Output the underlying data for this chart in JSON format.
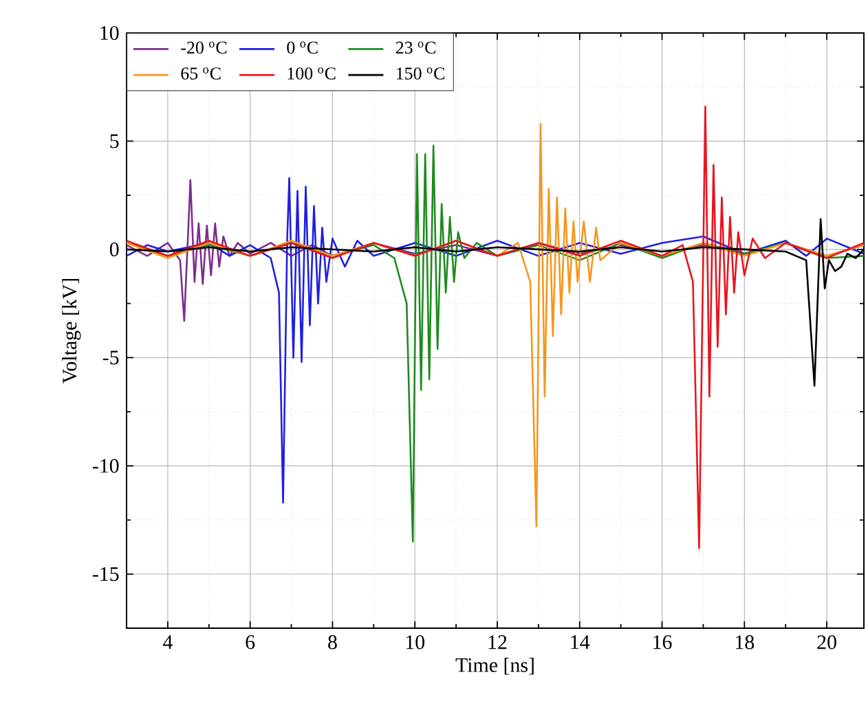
{
  "chart_data": {
    "type": "line",
    "xlabel": "Time [ns]",
    "ylabel": "Voltage [kV]",
    "xlim": [
      3,
      20.9
    ],
    "ylim": [
      -17.5,
      10
    ],
    "xticks": [
      4,
      6,
      8,
      10,
      12,
      14,
      16,
      18,
      20
    ],
    "yticks": [
      -15,
      -10,
      -5,
      0,
      5,
      10
    ],
    "grid": true,
    "legend": "top left",
    "marker": "none",
    "line_style": "solid",
    "series": [
      {
        "name": "-20 $^{o}$C",
        "color": "#7b2d8e",
        "x": [
          3,
          3.5,
          4,
          4.3,
          4.4,
          4.5,
          4.55,
          4.65,
          4.75,
          4.85,
          4.95,
          5.05,
          5.15,
          5.25,
          5.35,
          5.5,
          5.7,
          6,
          6.5,
          7,
          7.5,
          8,
          9,
          10,
          11,
          12,
          13,
          14,
          15,
          16,
          17,
          18,
          19,
          20,
          20.9
        ],
        "values": [
          0.2,
          -0.3,
          0.3,
          -0.5,
          -3.3,
          1.0,
          3.2,
          -1.5,
          1.2,
          -1.6,
          1.1,
          -1.2,
          1.2,
          -0.8,
          0.6,
          -0.3,
          0.3,
          -0.2,
          0.3,
          -0.3,
          0.2,
          -0.3,
          0.3,
          -0.2,
          0.2,
          -0.3,
          0.3,
          -0.2,
          0.2,
          -0.3,
          0.2,
          -0.2,
          0.3,
          -0.3,
          0.2
        ]
      },
      {
        "name": "0 $^{o}$C",
        "color": "#1f1fe0",
        "x": [
          3,
          3.5,
          4,
          5,
          5.5,
          6,
          6.5,
          6.7,
          6.8,
          6.9,
          6.95,
          7.05,
          7.15,
          7.25,
          7.35,
          7.45,
          7.55,
          7.65,
          7.75,
          7.85,
          8,
          8.3,
          8.6,
          9,
          10,
          11,
          12,
          13,
          14,
          15,
          16,
          17,
          18,
          19,
          19.5,
          20,
          20.9
        ],
        "values": [
          -0.3,
          0.2,
          -0.1,
          0.3,
          -0.3,
          0.2,
          -0.4,
          -2,
          -11.7,
          0.5,
          3.3,
          -5.0,
          2.7,
          -5.2,
          2.9,
          -3.5,
          2.0,
          -2.5,
          1.0,
          -1.5,
          0.5,
          -0.8,
          0.4,
          -0.3,
          0.3,
          -0.3,
          0.4,
          -0.3,
          0.3,
          -0.2,
          0.3,
          0.6,
          -0.2,
          0.4,
          -0.3,
          0.5,
          -0.2
        ]
      },
      {
        "name": "23 $^{o}$C",
        "color": "#1e8a1e",
        "x": [
          3,
          4,
          5,
          6,
          7,
          8,
          9,
          9.5,
          9.8,
          9.95,
          10.05,
          10.15,
          10.25,
          10.35,
          10.45,
          10.55,
          10.65,
          10.75,
          10.85,
          10.95,
          11.05,
          11.2,
          11.5,
          12,
          13,
          14,
          15,
          16,
          17,
          18,
          19,
          20,
          20.9
        ],
        "values": [
          0.3,
          -0.3,
          0.2,
          -0.3,
          0.3,
          -0.3,
          0.2,
          -0.4,
          -2.5,
          -13.5,
          4.4,
          -6.5,
          4.4,
          -6.0,
          4.8,
          -4.6,
          2.1,
          -2.0,
          1.5,
          -1.5,
          0.8,
          -0.4,
          0.3,
          -0.3,
          0.2,
          -0.5,
          0.3,
          -0.4,
          0.3,
          -0.2,
          0.3,
          -0.4,
          -0.3
        ]
      },
      {
        "name": "65 $^{o}$C",
        "color": "#f5961e",
        "x": [
          3,
          4,
          5,
          6,
          7,
          8,
          9,
          10,
          11,
          12,
          12.5,
          12.8,
          12.95,
          13.05,
          13.15,
          13.25,
          13.35,
          13.45,
          13.55,
          13.65,
          13.75,
          13.85,
          13.95,
          14.1,
          14.25,
          14.4,
          14.5,
          15,
          16,
          17,
          18,
          19,
          20,
          20.9
        ],
        "values": [
          0.3,
          -0.4,
          0.3,
          -0.3,
          0.4,
          -0.3,
          0.3,
          -0.3,
          0.4,
          -0.3,
          0.3,
          -1.5,
          -12.8,
          5.8,
          -6.8,
          2.8,
          -4.0,
          2.4,
          -3.0,
          1.9,
          -2.0,
          1.3,
          -1.5,
          1.3,
          -1.5,
          1.0,
          -0.5,
          0.3,
          -0.3,
          0.3,
          -0.3,
          0.3,
          -0.3,
          0.2
        ]
      },
      {
        "name": "100 $^{o}$C",
        "color": "#e8141e",
        "x": [
          3,
          4,
          5,
          6,
          7,
          8,
          9,
          10,
          11,
          12,
          13,
          14,
          15,
          16,
          16.5,
          16.75,
          16.9,
          17.05,
          17.15,
          17.25,
          17.35,
          17.45,
          17.55,
          17.65,
          17.75,
          17.85,
          18,
          18.2,
          18.5,
          19,
          20,
          20.9
        ],
        "values": [
          0.4,
          -0.3,
          0.4,
          -0.3,
          0.3,
          -0.4,
          0.3,
          -0.3,
          0.4,
          -0.3,
          0.3,
          -0.3,
          0.4,
          -0.3,
          0.2,
          -1.5,
          -13.8,
          6.6,
          -6.8,
          3.9,
          -4.5,
          2.4,
          -3.0,
          1.5,
          -2.0,
          0.8,
          -1.2,
          0.5,
          -0.4,
          0.3,
          -0.4,
          0.3
        ]
      },
      {
        "name": "150 $^{o}$C",
        "color": "#000000",
        "x": [
          3,
          4,
          5,
          6,
          7,
          8,
          9,
          10,
          11,
          12,
          13,
          14,
          15,
          16,
          17,
          18,
          19,
          19.5,
          19.7,
          19.85,
          19.95,
          20.05,
          20.2,
          20.35,
          20.5,
          20.7,
          20.9
        ],
        "values": [
          0,
          -0.1,
          0.1,
          -0.1,
          0.1,
          0,
          -0.1,
          0.1,
          -0.1,
          0.1,
          0,
          -0.1,
          0.1,
          -0.1,
          0.1,
          0,
          -0.1,
          -0.5,
          -6.3,
          1.4,
          -1.8,
          -0.5,
          -1.0,
          -0.8,
          -0.2,
          -0.4,
          0
        ]
      }
    ]
  }
}
